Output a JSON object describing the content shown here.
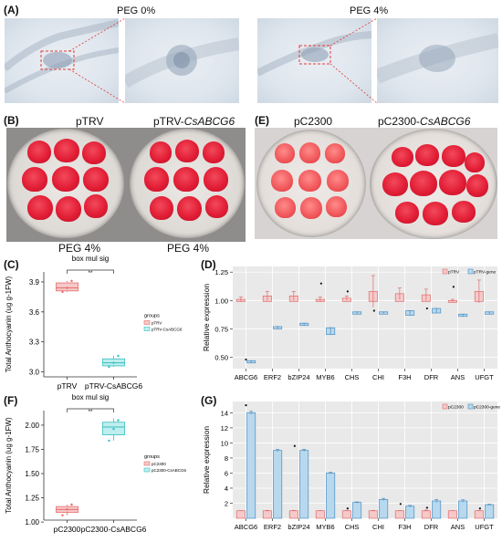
{
  "panel_labels": {
    "a": "(A)",
    "b": "(B)",
    "c": "(C)",
    "d": "(D)",
    "e": "(E)",
    "f": "(F)",
    "g": "(G)"
  },
  "micro_titles": {
    "left": "PEG 0%",
    "right": "PEG 4%"
  },
  "dish_titles": {
    "ptrv": "pTRV",
    "ptrv_gene_prefix": "pTRV-",
    "ptrv_gene_italic": "CsABCG6",
    "pc2300": "pC2300",
    "pc2300_gene_prefix": "pC2300-",
    "pc2300_gene_italic": "CsABCG6"
  },
  "dish_captions": {
    "left": "PEG 4%",
    "right": "PEG 4%"
  },
  "colors": {
    "pink_fill": "#f5c9c9",
    "pink_stroke": "#e06d6d",
    "blue_fill": "#b8d8ee",
    "blue_stroke": "#4b8fc2",
    "cyan_fill": "#bfeeee",
    "cyan_stroke": "#34bfbf",
    "red_stroke": "#e86a6a",
    "grey_bg": "#e9e9e9",
    "grid": "#ffffff"
  },
  "chart_data": [
    {
      "id": "C",
      "type": "box",
      "title": "box mul sig",
      "ylabel": "Total Anthocyanin (ug g-1FW)",
      "categories": [
        "pTRV",
        "pTRV-CsABCG6"
      ],
      "ylim": [
        2.95,
        4.0
      ],
      "yticks": [
        3.0,
        3.3,
        3.6,
        3.9
      ],
      "boxes": [
        {
          "min": 3.8,
          "q1": 3.81,
          "median": 3.84,
          "q3": 3.89,
          "max": 3.91,
          "points": [
            3.8,
            3.84,
            3.91
          ]
        },
        {
          "min": 3.05,
          "q1": 3.06,
          "median": 3.09,
          "q3": 3.13,
          "max": 3.16,
          "points": [
            3.05,
            3.09,
            3.16
          ]
        }
      ],
      "sig_label": "**",
      "legend": {
        "title": "groups",
        "entries": [
          "pTRV",
          "pTRV-CsABCG6"
        ]
      }
    },
    {
      "id": "D",
      "type": "bar",
      "xlabel": "",
      "ylabel": "Relative expression",
      "categories": [
        "ABCG6",
        "ERF2",
        "bZIP24",
        "MYB6",
        "CHS",
        "CHI",
        "F3H",
        "DFR",
        "ANS",
        "UFGT"
      ],
      "ylim": [
        0.4,
        1.3
      ],
      "yticks": [
        0.5,
        0.75,
        1.0,
        1.25
      ],
      "yticklabels": [
        "0.50",
        "0.75",
        "1.00",
        "1.25"
      ],
      "series": [
        {
          "name": "pTRV",
          "values": [
            1.01,
            1.04,
            1.04,
            1.01,
            1.02,
            1.08,
            1.06,
            1.05,
            1.0,
            1.08
          ],
          "err": [
            0.02,
            0.04,
            0.04,
            0.02,
            0.02,
            0.14,
            0.05,
            0.05,
            0.01,
            0.1
          ]
        },
        {
          "name": "pTRV-gene",
          "values": [
            0.46,
            0.76,
            0.79,
            0.73,
            0.89,
            0.89,
            0.89,
            0.91,
            0.87,
            0.89
          ],
          "err": [
            0.01,
            0.01,
            0.01,
            0.03,
            0.01,
            0.01,
            0.02,
            0.02,
            0.01,
            0.01
          ]
        }
      ],
      "sig_marks": [
        0.48,
        null,
        null,
        1.15,
        1.08,
        0.91,
        null,
        0.93,
        1.12,
        null
      ],
      "legend": {
        "placement": "top-right",
        "entries": [
          "pTRV",
          "pTRV-gene"
        ]
      }
    },
    {
      "id": "F",
      "type": "box",
      "title": "box mul sig",
      "ylabel": "Total Anthocyanin (ug g-1FW)",
      "categories": [
        "pC2300",
        "pC2300-CsABCG6"
      ],
      "ylim": [
        1.02,
        2.15
      ],
      "yticks": [
        1.0,
        1.25,
        1.5,
        1.75,
        2.0
      ],
      "yticklabels": [
        "1.00",
        "1.25",
        "1.50",
        "1.75",
        "2.00"
      ],
      "boxes": [
        {
          "min": 1.07,
          "q1": 1.1,
          "median": 1.13,
          "q3": 1.16,
          "max": 1.18,
          "points": [
            1.07,
            1.13,
            1.18
          ]
        },
        {
          "min": 1.84,
          "q1": 1.9,
          "median": 1.98,
          "q3": 2.03,
          "max": 2.07,
          "points": [
            1.84,
            1.96,
            2.05
          ]
        }
      ],
      "sig_label": "**",
      "legend": {
        "title": "groups",
        "entries": [
          "pC2300",
          "pC2300-CsABCG6"
        ]
      }
    },
    {
      "id": "G",
      "type": "bar",
      "xlabel": "",
      "ylabel": "Relative expression",
      "categories": [
        "ABCG6",
        "ERF2",
        "bZIP24",
        "MYB6",
        "CHS",
        "CHI",
        "F3H",
        "DFR",
        "ANS",
        "UFGT"
      ],
      "ylim": [
        0,
        15.5
      ],
      "yticks": [
        2,
        4,
        6,
        8,
        10,
        12,
        14
      ],
      "series": [
        {
          "name": "pC2300",
          "values": [
            1.0,
            1.0,
            1.0,
            1.0,
            1.0,
            1.0,
            1.0,
            1.0,
            1.0,
            1.0
          ],
          "err": [
            0.02,
            0.05,
            0.05,
            0.03,
            0.03,
            0.05,
            0.03,
            0.08,
            0.02,
            0.03
          ]
        },
        {
          "name": "pC2300-gene",
          "values": [
            14.0,
            9.0,
            9.0,
            6.0,
            2.1,
            2.5,
            1.6,
            2.3,
            2.3,
            1.8
          ],
          "err": [
            0.2,
            0.15,
            0.15,
            0.1,
            0.08,
            0.15,
            0.1,
            0.2,
            0.15,
            0.08
          ]
        }
      ],
      "sig_marks": [
        15.0,
        null,
        9.6,
        null,
        1.3,
        null,
        1.9,
        1.4,
        null,
        1.3
      ],
      "legend": {
        "placement": "top-right",
        "entries": [
          "pC2300",
          "pC2300-gene"
        ]
      }
    }
  ]
}
